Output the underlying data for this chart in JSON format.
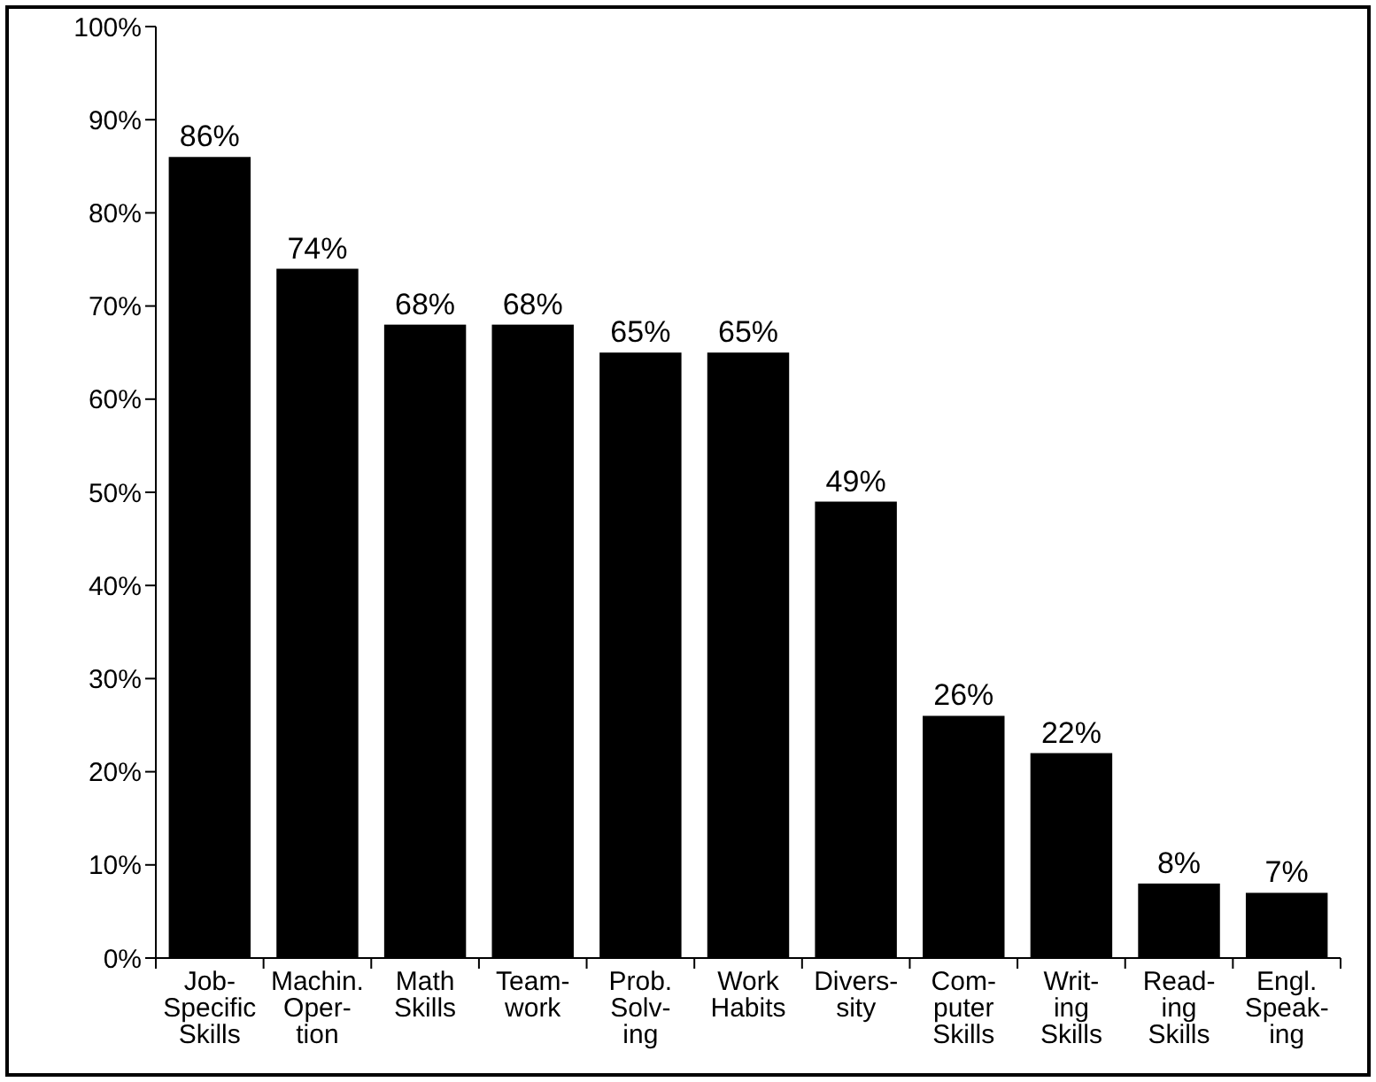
{
  "chart_data": {
    "type": "bar",
    "categories": [
      "Job-\nSpecific\nSkills",
      "Machin.\nOper-\ntion",
      "Math\nSkills",
      "Team-\nwork",
      "Prob.\nSolv-\ning",
      "Work\nHabits",
      "Divers-\nsity",
      "Com-\nputer\nSkills",
      "Writ-\ning\nSkills",
      "Read-\ning\nSkills",
      "Engl.\nSpeak-\ning"
    ],
    "values": [
      86,
      74,
      68,
      68,
      65,
      65,
      49,
      26,
      22,
      8,
      7
    ],
    "value_labels": [
      "86%",
      "74%",
      "68%",
      "68%",
      "65%",
      "65%",
      "49%",
      "26%",
      "22%",
      "8%",
      "7%"
    ],
    "color": "#000000",
    "ylim": [
      0,
      100
    ],
    "yticks": [
      {
        "value": 0,
        "label": "0%"
      },
      {
        "value": 10,
        "label": "10%"
      },
      {
        "value": 20,
        "label": "20%"
      },
      {
        "value": 30,
        "label": "30%"
      },
      {
        "value": 40,
        "label": "40%"
      },
      {
        "value": 50,
        "label": "50%"
      },
      {
        "value": 60,
        "label": "60%"
      },
      {
        "value": 70,
        "label": "70%"
      },
      {
        "value": 80,
        "label": "80%"
      },
      {
        "value": 90,
        "label": "90%"
      },
      {
        "value": 100,
        "label": "100%"
      }
    ],
    "grid": false
  }
}
